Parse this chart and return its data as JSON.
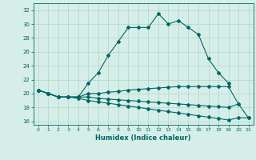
{
  "title": "",
  "xlabel": "Humidex (Indice chaleur)",
  "x": [
    0,
    1,
    2,
    3,
    4,
    5,
    6,
    7,
    8,
    9,
    10,
    11,
    12,
    13,
    14,
    15,
    16,
    17,
    18,
    19,
    20,
    21
  ],
  "line1": [
    20.5,
    20.0,
    19.5,
    19.5,
    19.5,
    21.5,
    23.0,
    25.5,
    27.5,
    29.5,
    29.5,
    29.5,
    31.5,
    30.0,
    30.5,
    29.5,
    28.5,
    25.0,
    23.0,
    21.5,
    null,
    null
  ],
  "line2": [
    20.5,
    20.0,
    19.5,
    19.5,
    19.5,
    20.0,
    20.0,
    20.2,
    20.3,
    20.5,
    20.6,
    20.7,
    20.8,
    20.9,
    21.0,
    21.0,
    21.0,
    21.0,
    21.0,
    21.0,
    18.5,
    null
  ],
  "line3": [
    20.5,
    20.0,
    19.5,
    19.5,
    19.5,
    19.5,
    19.3,
    19.2,
    19.1,
    19.0,
    18.9,
    18.8,
    18.7,
    18.6,
    18.5,
    18.4,
    18.3,
    18.2,
    18.1,
    18.0,
    18.5,
    16.5
  ],
  "line4": [
    20.5,
    20.0,
    19.5,
    19.5,
    19.3,
    19.0,
    18.8,
    18.6,
    18.4,
    18.2,
    18.0,
    17.8,
    17.6,
    17.4,
    17.2,
    17.0,
    16.8,
    16.6,
    16.4,
    16.2,
    16.5,
    16.5
  ],
  "bg_color": "#d6eee8",
  "grid_color": "#b0d4cc",
  "line_color": "#006666",
  "ylim": [
    15.5,
    33.0
  ],
  "yticks": [
    16,
    18,
    20,
    22,
    24,
    26,
    28,
    30,
    32
  ],
  "xlim": [
    -0.5,
    21.5
  ],
  "xticks": [
    0,
    1,
    2,
    3,
    4,
    5,
    6,
    7,
    8,
    9,
    10,
    11,
    12,
    13,
    14,
    15,
    16,
    17,
    18,
    19,
    20,
    21
  ]
}
